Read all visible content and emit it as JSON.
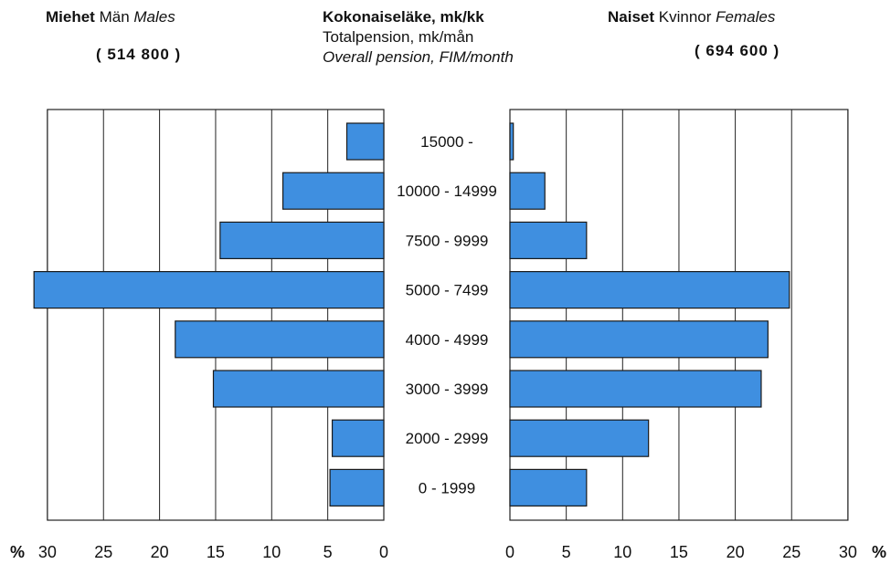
{
  "header": {
    "males_fi": "Miehet",
    "males_sv": "Män",
    "males_en": "Males",
    "males_total": "( 514 800 )",
    "title_fi": "Kokonaiseläke, mk/kk",
    "title_sv": "Totalpension, mk/mån",
    "title_en": "Overall pension, FIM/month",
    "females_fi": "Naiset",
    "females_sv": "Kvinnor",
    "females_en": "Females",
    "females_total": "( 694 600 )"
  },
  "colors": {
    "bar": "#3f8fe0",
    "bar_stroke": "#1a1a1a",
    "grid": "#222222"
  },
  "chart_data": {
    "type": "bar",
    "orientation": "horizontal",
    "layout": "population-pyramid",
    "categories": [
      "15000 -",
      "10000 - 14999",
      "7500 - 9999",
      "5000 - 7499",
      "4000 - 4999",
      "3000 - 3999",
      "2000 - 2999",
      "0 - 1999"
    ],
    "series": [
      {
        "name": "Miehet Män Males",
        "values": [
          3.3,
          9.0,
          14.6,
          31.2,
          18.6,
          15.2,
          4.6,
          4.8
        ]
      },
      {
        "name": "Naiset Kvinnor Females",
        "values": [
          0.3,
          3.1,
          6.8,
          24.8,
          22.9,
          22.3,
          12.3,
          6.8
        ]
      }
    ],
    "xlim": [
      0,
      30
    ],
    "ticks": [
      "30",
      "25",
      "20",
      "15",
      "10",
      "5",
      "0"
    ],
    "ticks_right": [
      "0",
      "5",
      "10",
      "15",
      "20",
      "25",
      "30"
    ],
    "unit_label": "%",
    "grid": true
  }
}
